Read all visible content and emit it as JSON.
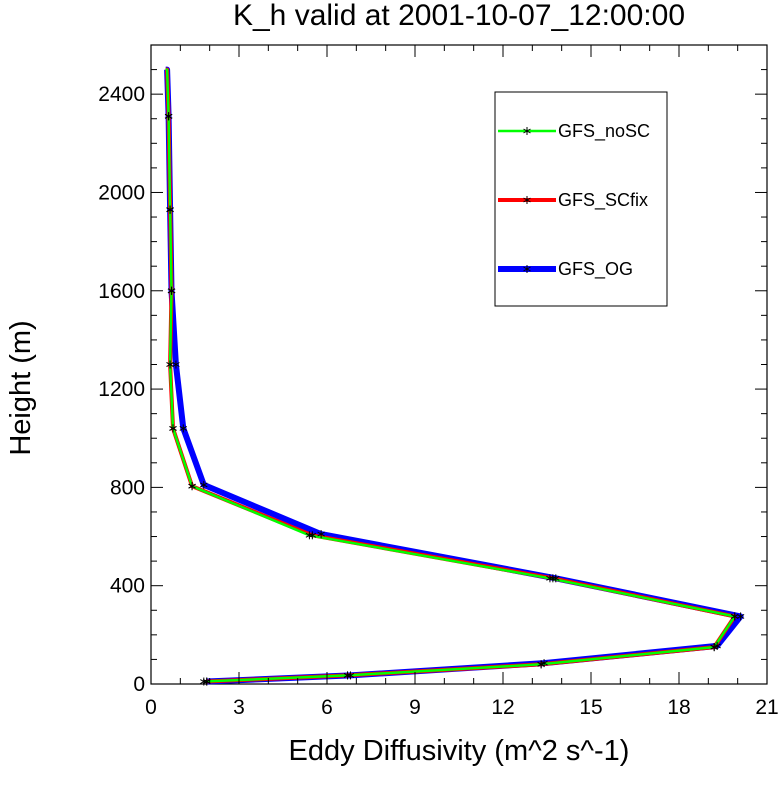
{
  "chart_data": {
    "type": "line",
    "title": "K_h valid at 2001-10-07_12:00:00",
    "xlabel": "Eddy Diffusivity (m^2 s^-1)",
    "ylabel": "Height (m)",
    "xlim": [
      0,
      21
    ],
    "ylim": [
      0,
      2500
    ],
    "xticks": [
      "0",
      "3",
      "6",
      "9",
      "12",
      "15",
      "18",
      "21"
    ],
    "yticks": [
      "0",
      "400",
      "800",
      "1200",
      "1600",
      "2000",
      "2400"
    ],
    "legend_position": "top-right",
    "series": [
      {
        "name": "GFS_OG",
        "color": "#0000ff",
        "x": [
          1.9,
          6.8,
          13.4,
          19.3,
          20.1,
          13.8,
          5.8,
          1.8,
          1.1,
          0.85,
          0.7,
          0.65,
          0.6,
          0.55,
          0.5
        ],
        "y": [
          10,
          35,
          85,
          155,
          275,
          430,
          610,
          810,
          1040,
          1300,
          1600,
          1930,
          2310,
          2500,
          2500
        ]
      },
      {
        "name": "GFS_SCfix",
        "color": "#ff0000",
        "x": [
          1.9,
          6.7,
          13.3,
          19.2,
          19.9,
          13.7,
          5.5,
          1.4,
          0.75,
          0.65,
          0.7,
          0.65,
          0.6,
          0.55,
          0.5
        ],
        "y": [
          10,
          35,
          80,
          150,
          275,
          430,
          605,
          805,
          1040,
          1300,
          1600,
          1930,
          2310,
          2500,
          2500
        ]
      },
      {
        "name": "GFS_noSC",
        "color": "#00ff00",
        "x": [
          1.8,
          6.7,
          13.3,
          19.2,
          19.9,
          13.6,
          5.4,
          1.4,
          0.75,
          0.65,
          0.7,
          0.65,
          0.6,
          0.55,
          0.5
        ],
        "y": [
          10,
          35,
          80,
          150,
          275,
          430,
          605,
          805,
          1040,
          1300,
          1600,
          1930,
          2310,
          2500,
          2500
        ]
      }
    ],
    "legend": [
      "GFS_noSC",
      "GFS_SCfix",
      "GFS_OG"
    ],
    "marker_color": "#000000",
    "grid": false
  }
}
